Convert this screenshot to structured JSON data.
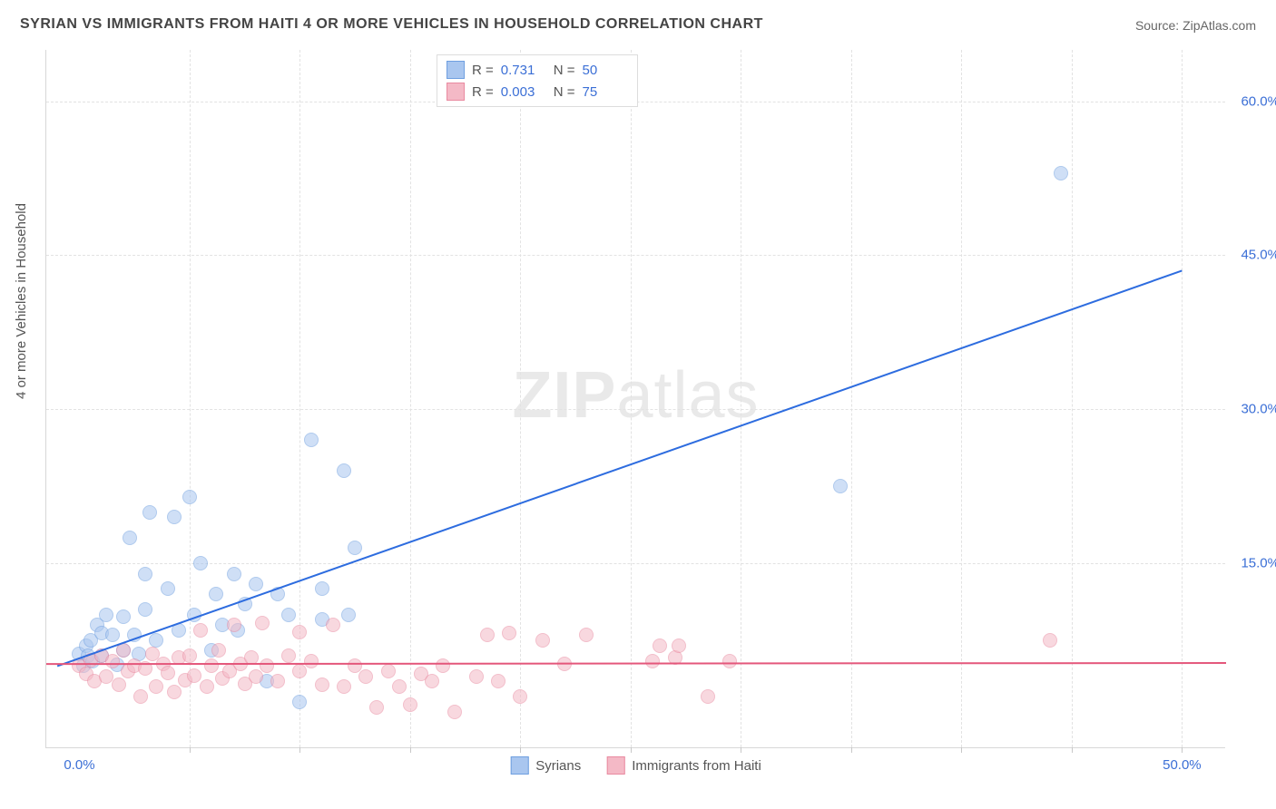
{
  "title": "SYRIAN VS IMMIGRANTS FROM HAITI 4 OR MORE VEHICLES IN HOUSEHOLD CORRELATION CHART",
  "source": "Source: ZipAtlas.com",
  "ylabel": "4 or more Vehicles in Household",
  "watermark_a": "ZIP",
  "watermark_b": "atlas",
  "chart": {
    "type": "scatter",
    "background_color": "#ffffff",
    "grid_color": "#e2e2e2",
    "axis_color": "#d8d8d8",
    "tick_font_color": "#3b6fd6",
    "tick_fontsize": 15,
    "label_fontsize": 15,
    "xlim": [
      -1.5,
      52
    ],
    "ylim": [
      -3,
      65
    ],
    "xticks": [
      0.0,
      50.0
    ],
    "xtick_labels": [
      "0.0%",
      "50.0%"
    ],
    "x_gridlines": [
      5,
      10,
      15,
      20,
      25,
      30,
      35,
      40,
      45,
      50
    ],
    "yticks": [
      15.0,
      30.0,
      45.0,
      60.0
    ],
    "ytick_labels": [
      "15.0%",
      "30.0%",
      "45.0%",
      "60.0%"
    ],
    "marker_radius": 8,
    "marker_opacity": 0.55,
    "line_width": 2,
    "series": [
      {
        "name": "Syrians",
        "fill": "#a9c6ef",
        "stroke": "#6f9fe0",
        "line_color": "#2d6cdf",
        "R_label": "R  =",
        "R": "0.731",
        "N_label": "N  =",
        "N": "50",
        "trend": {
          "x1": -1.0,
          "y1": 5.0,
          "x2": 50.0,
          "y2": 43.5
        },
        "points": [
          [
            0.0,
            6.2
          ],
          [
            0.2,
            5.0
          ],
          [
            0.3,
            7.0
          ],
          [
            0.4,
            6.0
          ],
          [
            0.5,
            7.5
          ],
          [
            0.6,
            5.5
          ],
          [
            0.8,
            9.0
          ],
          [
            1.0,
            8.2
          ],
          [
            1.0,
            6.0
          ],
          [
            1.2,
            10.0
          ],
          [
            1.5,
            8.0
          ],
          [
            1.7,
            5.1
          ],
          [
            2.0,
            9.8
          ],
          [
            2.0,
            6.5
          ],
          [
            2.3,
            17.5
          ],
          [
            2.5,
            8.0
          ],
          [
            2.7,
            6.2
          ],
          [
            3.0,
            14.0
          ],
          [
            3.0,
            10.5
          ],
          [
            3.2,
            20.0
          ],
          [
            3.5,
            7.5
          ],
          [
            4.0,
            12.5
          ],
          [
            4.3,
            19.5
          ],
          [
            4.5,
            8.5
          ],
          [
            5.0,
            21.5
          ],
          [
            5.2,
            10.0
          ],
          [
            5.5,
            15.0
          ],
          [
            6.0,
            6.5
          ],
          [
            6.2,
            12.0
          ],
          [
            6.5,
            9.0
          ],
          [
            7.0,
            14.0
          ],
          [
            7.2,
            8.5
          ],
          [
            7.5,
            11.0
          ],
          [
            8.0,
            13.0
          ],
          [
            8.5,
            3.5
          ],
          [
            9.0,
            12.0
          ],
          [
            9.5,
            10.0
          ],
          [
            10.0,
            1.5
          ],
          [
            10.5,
            27.0
          ],
          [
            11.0,
            9.5
          ],
          [
            11.0,
            12.5
          ],
          [
            12.0,
            24.0
          ],
          [
            12.2,
            10.0
          ],
          [
            12.5,
            16.5
          ],
          [
            34.5,
            22.5
          ],
          [
            44.5,
            53.0
          ]
        ]
      },
      {
        "name": "Immigrants from Haiti",
        "fill": "#f4b9c6",
        "stroke": "#e98aa0",
        "line_color": "#e4577b",
        "R_label": "R  =",
        "R": "0.003",
        "N_label": "N  =",
        "N": "75",
        "trend": {
          "x1": -1.5,
          "y1": 5.2,
          "x2": 52.0,
          "y2": 5.3
        },
        "points": [
          [
            0.0,
            5.0
          ],
          [
            0.3,
            4.2
          ],
          [
            0.5,
            5.6
          ],
          [
            0.7,
            3.5
          ],
          [
            1.0,
            6.0
          ],
          [
            1.2,
            4.0
          ],
          [
            1.5,
            5.5
          ],
          [
            1.8,
            3.2
          ],
          [
            2.0,
            6.5
          ],
          [
            2.2,
            4.5
          ],
          [
            2.5,
            5.0
          ],
          [
            2.8,
            2.0
          ],
          [
            3.0,
            4.8
          ],
          [
            3.3,
            6.2
          ],
          [
            3.5,
            3.0
          ],
          [
            3.8,
            5.2
          ],
          [
            4.0,
            4.3
          ],
          [
            4.3,
            2.5
          ],
          [
            4.5,
            5.8
          ],
          [
            4.8,
            3.6
          ],
          [
            5.0,
            6.0
          ],
          [
            5.2,
            4.1
          ],
          [
            5.5,
            8.5
          ],
          [
            5.8,
            3.0
          ],
          [
            6.0,
            5.0
          ],
          [
            6.3,
            6.5
          ],
          [
            6.5,
            3.8
          ],
          [
            6.8,
            4.5
          ],
          [
            7.0,
            9.0
          ],
          [
            7.3,
            5.2
          ],
          [
            7.5,
            3.3
          ],
          [
            7.8,
            5.8
          ],
          [
            8.0,
            4.0
          ],
          [
            8.3,
            9.2
          ],
          [
            8.5,
            5.0
          ],
          [
            9.0,
            3.5
          ],
          [
            9.5,
            6.0
          ],
          [
            10.0,
            8.3
          ],
          [
            10.0,
            4.5
          ],
          [
            10.5,
            5.5
          ],
          [
            11.0,
            3.2
          ],
          [
            11.5,
            9.0
          ],
          [
            12.0,
            3.0
          ],
          [
            12.5,
            5.0
          ],
          [
            13.0,
            4.0
          ],
          [
            13.5,
            1.0
          ],
          [
            14.0,
            4.5
          ],
          [
            14.5,
            3.0
          ],
          [
            15.0,
            1.2
          ],
          [
            15.5,
            4.2
          ],
          [
            16.0,
            3.5
          ],
          [
            16.5,
            5.0
          ],
          [
            17.0,
            0.5
          ],
          [
            18.0,
            4.0
          ],
          [
            18.5,
            8.0
          ],
          [
            19.0,
            3.5
          ],
          [
            19.5,
            8.2
          ],
          [
            20.0,
            2.0
          ],
          [
            21.0,
            7.5
          ],
          [
            22.0,
            5.2
          ],
          [
            23.0,
            8.0
          ],
          [
            26.0,
            5.5
          ],
          [
            26.3,
            7.0
          ],
          [
            27.0,
            5.8
          ],
          [
            27.2,
            7.0
          ],
          [
            28.5,
            2.0
          ],
          [
            29.5,
            5.5
          ],
          [
            44.0,
            7.5
          ]
        ]
      }
    ]
  }
}
